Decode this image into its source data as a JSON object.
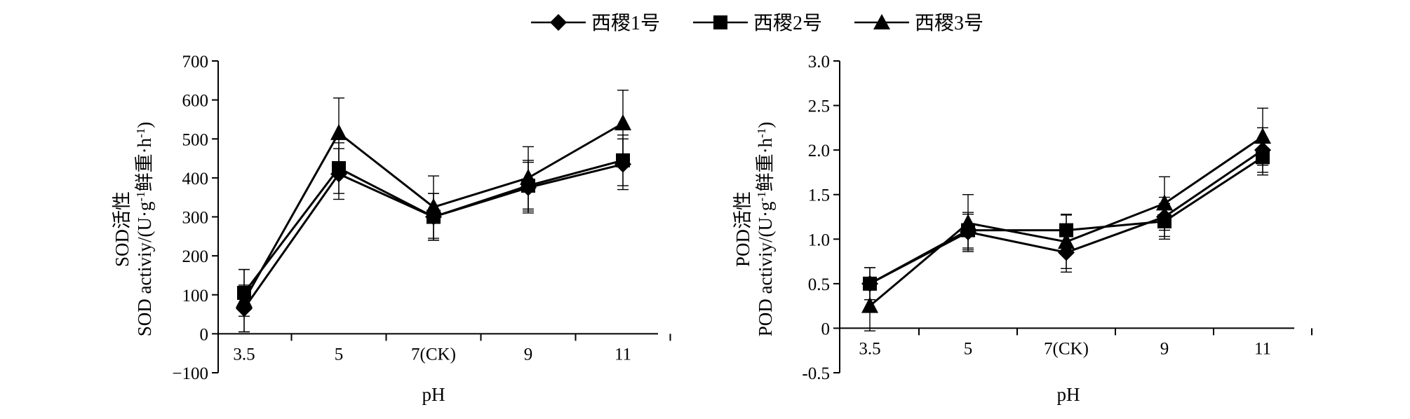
{
  "legend": {
    "position": "top-center",
    "entries": [
      {
        "label": "西稷1号",
        "marker": "diamond"
      },
      {
        "label": "西稷2号",
        "marker": "square"
      },
      {
        "label": "西稷3号",
        "marker": "triangle"
      }
    ]
  },
  "chart_data": [
    {
      "type": "line",
      "categories": [
        "3.5",
        "5",
        "7(CK)",
        "9",
        "11"
      ],
      "xlabel": "pH",
      "ylabel_line1": "SOD活性",
      "ylabel_line2": "SOD activiy/(U·g",
      "ylabel_sup": "-1",
      "ylabel_line2_end": "鲜重·h",
      "ylabel_end_sup": "-1",
      "ylabel_close": ")",
      "ylim": [
        -100,
        700
      ],
      "yticks": [
        -100,
        0,
        100,
        200,
        300,
        400,
        500,
        600,
        700
      ],
      "ytick_labels": [
        "−100",
        "0",
        "100",
        "200",
        "300",
        "400",
        "500",
        "600",
        "700"
      ],
      "grid": false,
      "series": [
        {
          "name": "西稷1号",
          "marker": "diamond",
          "values": [
            65,
            410,
            300,
            375,
            435
          ],
          "errors": [
            60,
            65,
            60,
            65,
            65
          ]
        },
        {
          "name": "西稷2号",
          "marker": "square",
          "values": [
            105,
            425,
            300,
            380,
            445
          ],
          "errors": [
            60,
            65,
            60,
            65,
            65
          ]
        },
        {
          "name": "西稷3号",
          "marker": "triangle",
          "values": [
            85,
            515,
            325,
            400,
            540
          ],
          "errors": [
            80,
            90,
            80,
            80,
            85
          ]
        }
      ]
    },
    {
      "type": "line",
      "categories": [
        "3.5",
        "5",
        "7(CK)",
        "9",
        "11"
      ],
      "xlabel": "pH",
      "ylabel_line1": "POD活性",
      "ylabel_line2": "POD activiy/(U·g",
      "ylabel_sup": "-1",
      "ylabel_line2_end": "鲜重·h",
      "ylabel_end_sup": "-1",
      "ylabel_close": ")",
      "ylim": [
        -0.5,
        3.0
      ],
      "yticks": [
        -0.5,
        0,
        0.5,
        1.0,
        1.5,
        2.0,
        2.5,
        3.0
      ],
      "ytick_labels": [
        "-0.5",
        "0",
        "0.5",
        "1.0",
        "1.5",
        "2.0",
        "2.5",
        "3.0"
      ],
      "grid": false,
      "series": [
        {
          "name": "西稷1号",
          "marker": "diamond",
          "values": [
            0.5,
            1.08,
            0.85,
            1.25,
            2.0
          ],
          "errors": [
            0.18,
            0.2,
            0.22,
            0.22,
            0.25
          ]
        },
        {
          "name": "西稷2号",
          "marker": "square",
          "values": [
            0.5,
            1.1,
            1.1,
            1.2,
            1.92
          ],
          "errors": [
            0.18,
            0.2,
            0.18,
            0.2,
            0.2
          ]
        },
        {
          "name": "西稷3号",
          "marker": "triangle",
          "values": [
            0.25,
            1.18,
            0.97,
            1.4,
            2.15
          ],
          "errors": [
            0.28,
            0.32,
            0.3,
            0.3,
            0.32
          ]
        }
      ]
    }
  ]
}
